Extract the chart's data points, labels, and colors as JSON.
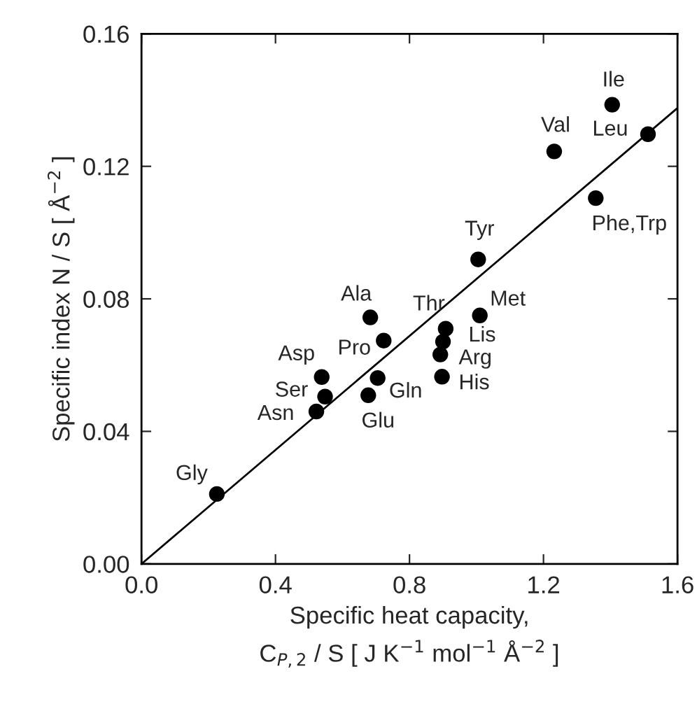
{
  "chart_data": {
    "type": "scatter",
    "xlabel": "Specific heat capacity,\nC$_{P,2}$ / S [ J K$^{−1}$ mol$^{−1}$ Å$^{−2}$ ]",
    "ylabel": "Specific index N / S [ Å$^{−2}$ ]",
    "series": [
      {
        "color": "#000000",
        "marker": "circle",
        "x": [
          0.225,
          0.522,
          0.548,
          0.538,
          0.723,
          0.677,
          0.705,
          0.683,
          0.908,
          0.9,
          0.892,
          0.897,
          1.005,
          1.01,
          1.232,
          1.405,
          1.512,
          1.356
        ],
        "values": [
          0.0211,
          0.046,
          0.0505,
          0.0564,
          0.0674,
          0.0509,
          0.0561,
          0.0744,
          0.071,
          0.0671,
          0.0632,
          0.0565,
          0.0919,
          0.075,
          0.1245,
          0.1386,
          0.1297,
          0.1104
        ]
      },
      {
        "type": "line",
        "color": "#000000",
        "marker": "none",
        "line_style": "solid",
        "x": [
          0,
          1.6
        ],
        "values": [
          0,
          0.1376
        ]
      }
    ],
    "annotations": [
      {
        "text": "Gly",
        "x": 0.225,
        "y": 0.0211
      },
      {
        "text": "Asn",
        "x": 0.522,
        "y": 0.046
      },
      {
        "text": "Ser",
        "x": 0.548,
        "y": 0.0505
      },
      {
        "text": "Asp",
        "x": 0.538,
        "y": 0.0564
      },
      {
        "text": "Pro",
        "x": 0.723,
        "y": 0.0674
      },
      {
        "text": "Glu",
        "x": 0.677,
        "y": 0.0509
      },
      {
        "text": "Gln",
        "x": 0.705,
        "y": 0.0561
      },
      {
        "text": "Ala",
        "x": 0.683,
        "y": 0.0744
      },
      {
        "text": "Thr",
        "x": 0.908,
        "y": 0.071
      },
      {
        "text": "Lis",
        "x": 0.9,
        "y": 0.0671
      },
      {
        "text": "Arg",
        "x": 0.892,
        "y": 0.0632
      },
      {
        "text": "His",
        "x": 0.897,
        "y": 0.0565
      },
      {
        "text": "Tyr",
        "x": 1.005,
        "y": 0.0919
      },
      {
        "text": "Met",
        "x": 1.01,
        "y": 0.075
      },
      {
        "text": "Val",
        "x": 1.232,
        "y": 0.1245
      },
      {
        "text": "Ile",
        "x": 1.405,
        "y": 0.1386
      },
      {
        "text": "Leu",
        "x": 1.512,
        "y": 0.1297
      },
      {
        "text": "Phe,Trp",
        "x": 1.356,
        "y": 0.1104
      }
    ],
    "xlim": [
      0,
      1.6
    ],
    "xticks": [
      {
        "value": 0,
        "label": "0.0"
      },
      0.4,
      0.8,
      1.2,
      1.6
    ],
    "ylim": [
      0,
      0.16
    ],
    "yticks": [
      {
        "value": 0,
        "label": "0.00"
      },
      0.04,
      0.08,
      0.12,
      0.16
    ],
    "grid": false,
    "legend": false
  }
}
